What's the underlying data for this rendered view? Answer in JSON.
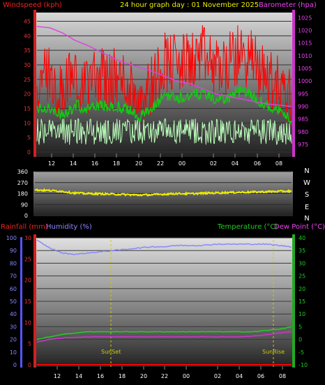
{
  "header": {
    "windspeed_label": "Windspeed (kph)",
    "title": "24 hour graph day : 01 November 2025",
    "barometer_label": "Barometer (hpa)"
  },
  "colors": {
    "wind_gust": "#ff0000",
    "wind_avg": "#11cc11",
    "wind_low": "#bbffbb",
    "barometer": "#e040e0",
    "direction": "#eeee00",
    "humidity": "#8888ff",
    "temperature": "#22cc22",
    "dew_point": "#cc33cc",
    "rainfall": "#ff0000",
    "sun_marker": "#cccc00"
  },
  "bottom": {
    "rain_label": "Rainfall (mm)",
    "humidity_label": "Humidity (%)",
    "temp_label": "Temperature (°C)",
    "dew_label": "Dew Point (°C)",
    "sunset": "SunSet",
    "sunrise": "SunRise"
  },
  "chart_data": [
    {
      "type": "line",
      "x_labels": [
        "12",
        "14",
        "16",
        "18",
        "20",
        "22",
        "00",
        "02",
        "04",
        "06",
        "08"
      ],
      "left_ticks": [
        "0",
        "5",
        "10",
        "15",
        "20",
        "25",
        "30",
        "35",
        "40",
        "45"
      ],
      "right_ticks": [
        "975",
        "980",
        "985",
        "990",
        "995",
        "1000",
        "1005",
        "1010",
        "1015",
        "1020",
        "1025"
      ],
      "ylim": [
        0,
        48
      ],
      "y2lim": [
        972,
        1027
      ],
      "series": [
        {
          "name": "Windspeed (kph)",
          "values": [
            24,
            25,
            20,
            26,
            24,
            26,
            25,
            24,
            20,
            23,
            32,
            30,
            31,
            33,
            29,
            30,
            34,
            31,
            26,
            23,
            18
          ]
        },
        {
          "name": "Barometer (hpa)",
          "values": [
            1021.5,
            1021,
            1019,
            1016,
            1014,
            1011.5,
            1009,
            1007,
            1005.5,
            1004,
            1002,
            1000,
            999,
            997,
            995,
            994,
            993,
            992,
            991,
            990.5,
            990
          ]
        }
      ]
    },
    {
      "type": "line",
      "directions": [
        "N",
        "W",
        "S",
        "E",
        "N"
      ],
      "left_ticks": [
        "0",
        "90",
        "180",
        "270",
        "360"
      ],
      "ylim": [
        0,
        360
      ],
      "series": [
        {
          "name": "",
          "values": [
            210,
            205,
            200,
            185,
            180,
            178,
            175,
            172,
            168,
            170,
            175,
            180,
            178,
            182,
            185,
            188,
            190,
            192,
            195,
            198,
            200
          ]
        }
      ]
    },
    {
      "type": "line",
      "rain_ticks": [
        "0",
        "5",
        "10",
        "15",
        "20",
        "25",
        "30"
      ],
      "humidity_ticks": [
        "0",
        "10",
        "20",
        "30",
        "40",
        "50",
        "60",
        "70",
        "80",
        "90",
        "100"
      ],
      "temp_ticks": [
        "-10",
        "-5",
        "0",
        "5",
        "10",
        "15",
        "20",
        "25",
        "30",
        "35",
        "40"
      ],
      "series": [
        {
          "name": "Humidity (%)",
          "values": [
            98,
            92,
            88,
            87,
            88,
            89,
            90,
            91,
            92,
            93,
            93,
            94,
            94,
            94,
            95,
            95,
            95,
            95,
            95,
            94,
            93
          ]
        },
        {
          "name": "Temperature (°C)",
          "values": [
            0,
            1,
            2,
            2.5,
            3,
            3,
            3,
            3,
            3,
            3,
            3,
            3,
            3,
            3,
            3,
            3,
            3,
            3,
            3.5,
            4,
            5
          ]
        },
        {
          "name": "Dew Point (°C)",
          "values": [
            -1,
            0,
            0.5,
            0.8,
            1,
            1,
            1,
            1,
            1,
            1,
            1,
            1,
            1,
            1,
            1,
            1,
            1,
            1.3,
            1.8,
            2.5,
            3
          ]
        },
        {
          "name": "Rainfall (mm)",
          "values": [
            0,
            0,
            0,
            0,
            0,
            0,
            0,
            0,
            0,
            0,
            0,
            0,
            0,
            0,
            0,
            0,
            0,
            0,
            0,
            0,
            0
          ]
        }
      ]
    }
  ]
}
